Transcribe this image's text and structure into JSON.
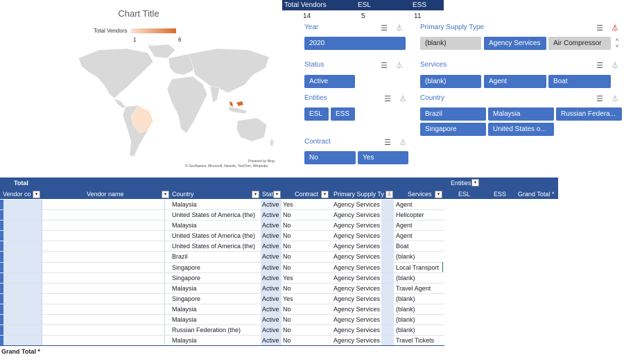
{
  "map": {
    "title": "Chart Title",
    "legend_label": "Total Vendors",
    "legend_min": "1",
    "legend_max": "6",
    "powered_by": "Powered by Bing",
    "attribution": "© GeoNames, Microsoft, Navinfo, TomTom, Wikipedia",
    "colors": {
      "land": "#d9d9d9",
      "brazil": "#fbe0cc",
      "malaysia": "#d96b2b"
    }
  },
  "totals": {
    "headers": [
      "Total Vendors",
      "ESL",
      "ESS"
    ],
    "values": [
      "14",
      "5",
      "11"
    ]
  },
  "slicers": {
    "year": {
      "title": "Year",
      "items": [
        "2020"
      ]
    },
    "status": {
      "title": "Status",
      "items": [
        "Active"
      ]
    },
    "entities": {
      "title": "Entities",
      "items": [
        "ESL",
        "ESS"
      ]
    },
    "contract": {
      "title": "Contract",
      "items": [
        "No",
        "Yes"
      ]
    },
    "supply": {
      "title": "Primary Supply Type",
      "items": [
        "(blank)",
        "Agency Services",
        "Air Compressor"
      ]
    },
    "services": {
      "title": "Services",
      "items": [
        "(blank)",
        "Agent",
        "Boat"
      ]
    },
    "country": {
      "title": "Country",
      "items": [
        "Brazil",
        "Malaysia",
        "Russian Federa...",
        "Singapore",
        "United States o..."
      ]
    }
  },
  "pivot": {
    "total_label": "Total",
    "entities_label": "Entities",
    "headers": [
      "Vendor co",
      "Vendor name",
      "Country",
      "Stat",
      "Contract",
      "Primary Supply Ty",
      "Services",
      "ESL",
      "ESS",
      "Grand Total *"
    ],
    "rows": [
      [
        "Malaysia",
        "Active",
        "Yes",
        "Agency Services",
        "Agent"
      ],
      [
        "United States of America (the)",
        "Active",
        "No",
        "Agency Services",
        "Helicopter"
      ],
      [
        "Malaysia",
        "Active",
        "No",
        "Agency Services",
        "Agent"
      ],
      [
        "United States of America (the)",
        "Active",
        "No",
        "Agency Services",
        "Agent"
      ],
      [
        "United States of America (the)",
        "Active",
        "No",
        "Agency Services",
        "Boat"
      ],
      [
        "Brazil",
        "Active",
        "No",
        "Agency Services",
        "(blank)"
      ],
      [
        "Singapore",
        "Active",
        "No",
        "Agency Services",
        "Local Transport"
      ],
      [
        "Singapore",
        "Active",
        "Yes",
        "Agency Services",
        "(blank)"
      ],
      [
        "Malaysia",
        "Active",
        "No",
        "Agency Services",
        "Travel Agent"
      ],
      [
        "Singapore",
        "Active",
        "Yes",
        "Agency Services",
        "(blank)"
      ],
      [
        "Malaysia",
        "Active",
        "No",
        "Agency Services",
        "(blank)"
      ],
      [
        "Malaysia",
        "Active",
        "No",
        "Agency Services",
        "(blank)"
      ],
      [
        "Russian Federation (the)",
        "Active",
        "No",
        "Agency Services",
        "(blank)"
      ],
      [
        "Malaysia",
        "Active",
        "No",
        "Agency Services",
        "Travel Tickets"
      ]
    ],
    "grand_total_label": "Grand Total *"
  }
}
